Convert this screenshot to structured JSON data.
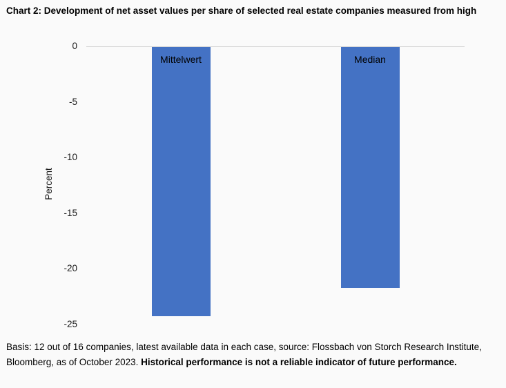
{
  "title": "Chart 2: Development of net asset values per share of selected real estate companies measured from high",
  "footer": {
    "normal": "Basis: 12 out of 16 companies, latest available data in each case, source: Flossbach von Storch Research Institute, Bloomberg, as of October 2023. ",
    "bold": "Historical performance is not a reliable indicator of future performance."
  },
  "chart_data": {
    "type": "bar",
    "categories": [
      "Mittelwert",
      "Median"
    ],
    "values": [
      -24.2,
      -21.7
    ],
    "title": "Chart 2: Development of net asset values per share of selected real estate companies measured from high",
    "xlabel": "",
    "ylabel": "Percent",
    "ylim": [
      0,
      -25
    ],
    "yticks": [
      0,
      -5,
      -10,
      -15,
      -20,
      -25
    ],
    "bar_color": "#4472C4",
    "gridline_color": "#D9D9D9",
    "grid": "zero-line-only",
    "legend_position": "none",
    "category_label_position": "inside-top"
  }
}
